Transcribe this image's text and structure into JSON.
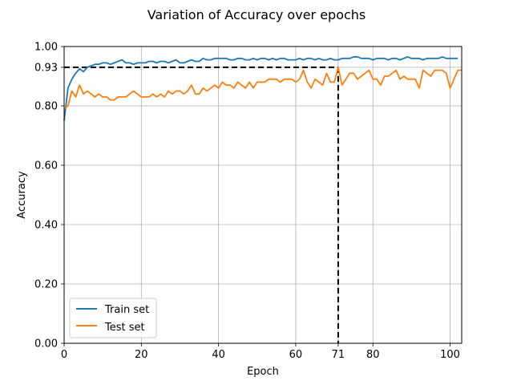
{
  "chart_data": {
    "type": "line",
    "title": "Variation of Accuracy over epochs",
    "xlabel": "Epoch",
    "ylabel": "Accuracy",
    "xlim": [
      0,
      103
    ],
    "ylim": [
      0.0,
      1.0
    ],
    "xticks": [
      0,
      20,
      40,
      60,
      71,
      80,
      100
    ],
    "yticks": [
      0.0,
      0.2,
      0.4,
      0.6,
      0.8,
      0.93,
      1.0
    ],
    "xtick_labels": [
      "0",
      "20",
      "40",
      "60",
      "71",
      "80",
      "100"
    ],
    "ytick_labels": [
      "0.00",
      "0.20",
      "0.40",
      "0.60",
      "0.80",
      "0.93",
      "1.00"
    ],
    "grid": true,
    "legend_position": "lower-left",
    "reference_lines": {
      "x": 71,
      "y": 0.93
    },
    "series": [
      {
        "name": "Train set",
        "color": "#1f77b4",
        "values": [
          0.75,
          0.86,
          0.89,
          0.91,
          0.925,
          0.915,
          0.93,
          0.935,
          0.94,
          0.94,
          0.945,
          0.945,
          0.94,
          0.945,
          0.95,
          0.955,
          0.945,
          0.945,
          0.94,
          0.945,
          0.945,
          0.945,
          0.95,
          0.95,
          0.945,
          0.95,
          0.95,
          0.945,
          0.95,
          0.955,
          0.945,
          0.945,
          0.95,
          0.955,
          0.95,
          0.95,
          0.96,
          0.955,
          0.955,
          0.96,
          0.96,
          0.96,
          0.96,
          0.955,
          0.955,
          0.96,
          0.96,
          0.955,
          0.955,
          0.96,
          0.955,
          0.96,
          0.96,
          0.955,
          0.96,
          0.955,
          0.96,
          0.96,
          0.955,
          0.955,
          0.955,
          0.96,
          0.955,
          0.96,
          0.96,
          0.955,
          0.96,
          0.955,
          0.955,
          0.96,
          0.955,
          0.955,
          0.96,
          0.96,
          0.96,
          0.965,
          0.965,
          0.96,
          0.96,
          0.96,
          0.955,
          0.96,
          0.96,
          0.96,
          0.955,
          0.96,
          0.96,
          0.955,
          0.96,
          0.965,
          0.96,
          0.96,
          0.96,
          0.955,
          0.96,
          0.96,
          0.96,
          0.96,
          0.965,
          0.96,
          0.96,
          0.96,
          0.96
        ]
      },
      {
        "name": "Test set",
        "color": "#ff7f0e",
        "values": [
          0.79,
          0.8,
          0.85,
          0.83,
          0.87,
          0.84,
          0.85,
          0.84,
          0.83,
          0.84,
          0.83,
          0.83,
          0.82,
          0.82,
          0.83,
          0.83,
          0.83,
          0.84,
          0.85,
          0.84,
          0.83,
          0.83,
          0.83,
          0.84,
          0.83,
          0.84,
          0.83,
          0.85,
          0.84,
          0.85,
          0.85,
          0.84,
          0.85,
          0.87,
          0.84,
          0.84,
          0.86,
          0.85,
          0.86,
          0.87,
          0.86,
          0.88,
          0.87,
          0.87,
          0.86,
          0.88,
          0.87,
          0.86,
          0.88,
          0.86,
          0.88,
          0.88,
          0.88,
          0.89,
          0.89,
          0.89,
          0.88,
          0.89,
          0.89,
          0.89,
          0.88,
          0.89,
          0.92,
          0.88,
          0.86,
          0.89,
          0.88,
          0.87,
          0.91,
          0.88,
          0.88,
          0.93,
          0.87,
          0.89,
          0.91,
          0.91,
          0.89,
          0.9,
          0.91,
          0.92,
          0.89,
          0.89,
          0.87,
          0.9,
          0.9,
          0.91,
          0.92,
          0.89,
          0.9,
          0.89,
          0.89,
          0.89,
          0.86,
          0.92,
          0.91,
          0.9,
          0.92,
          0.92,
          0.92,
          0.91,
          0.86,
          0.89,
          0.92,
          0.92
        ]
      }
    ]
  }
}
